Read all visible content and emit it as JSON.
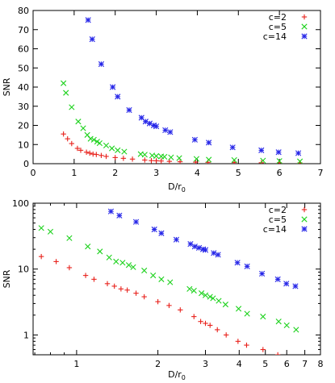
{
  "colors": {
    "c2": "#e8211b",
    "c5": "#1ed21e",
    "c14": "#2727e8",
    "axis": "#000000",
    "background": "#ffffff"
  },
  "chart_data": [
    {
      "type": "scatter",
      "title": "",
      "xlabel": "D/r",
      "xlabel_subscript": "0",
      "ylabel": "SNR",
      "xscale": "linear",
      "yscale": "linear",
      "xlim": [
        0,
        7
      ],
      "ylim": [
        0,
        80
      ],
      "xticks": [
        0,
        1,
        2,
        3,
        4,
        5,
        6,
        7
      ],
      "xtick_labels": [
        "0",
        "1",
        "2",
        "3",
        "4",
        "5",
        "6",
        "7"
      ],
      "yticks": [
        0,
        10,
        20,
        30,
        40,
        50,
        60,
        70,
        80
      ],
      "ytick_labels": [
        "0",
        "10",
        "20",
        "30",
        "40",
        "50",
        "60",
        "70",
        "80"
      ],
      "legend_position": "top-right",
      "series": [
        {
          "name": "c=2",
          "marker": "plus",
          "color": "#e8211b",
          "x": [
            0.74,
            0.84,
            0.94,
            1.08,
            1.16,
            1.3,
            1.38,
            1.46,
            1.54,
            1.66,
            1.78,
            2.0,
            2.2,
            2.42,
            2.72,
            2.88,
            3.0,
            3.12,
            3.32,
            3.58,
            3.96,
            4.26,
            4.9,
            5.56,
            6.0,
            6.5
          ],
          "y": [
            15.5,
            13.0,
            10.5,
            8.0,
            7.0,
            6.0,
            5.5,
            5.0,
            4.8,
            4.3,
            3.8,
            3.2,
            2.8,
            2.4,
            1.9,
            1.6,
            1.5,
            1.4,
            1.2,
            1.0,
            0.8,
            0.7,
            0.6,
            0.5,
            0.45,
            0.4
          ]
        },
        {
          "name": "c=5",
          "marker": "x",
          "color": "#1ed21e",
          "x": [
            0.74,
            0.8,
            0.94,
            1.1,
            1.22,
            1.32,
            1.4,
            1.48,
            1.56,
            1.62,
            1.78,
            1.92,
            2.06,
            2.22,
            2.62,
            2.72,
            2.9,
            3.0,
            3.12,
            3.2,
            3.36,
            3.56,
            3.98,
            4.28,
            4.9,
            5.6,
            6.0,
            6.5
          ],
          "y": [
            42,
            37,
            29.5,
            22,
            18.5,
            15,
            13,
            12.5,
            11.5,
            10.7,
            9.5,
            8.0,
            7.0,
            6.3,
            5.0,
            4.7,
            4.3,
            4.0,
            3.8,
            3.6,
            3.3,
            2.9,
            2.5,
            2.1,
            1.9,
            1.6,
            1.4,
            1.2
          ]
        },
        {
          "name": "c=14",
          "marker": "star",
          "color": "#2727e8",
          "x": [
            1.34,
            1.44,
            1.66,
            1.94,
            2.06,
            2.34,
            2.64,
            2.74,
            2.84,
            2.94,
            3.0,
            3.22,
            3.34,
            3.94,
            4.28,
            4.86,
            5.56,
            5.98,
            6.46
          ],
          "y": [
            75,
            65,
            52,
            40,
            35,
            28,
            24,
            22,
            21,
            20,
            19.5,
            17.5,
            16.5,
            12.5,
            11,
            8.5,
            7,
            6,
            5.5
          ]
        }
      ]
    },
    {
      "type": "scatter",
      "title": "",
      "xlabel": "D/r",
      "xlabel_subscript": "0",
      "ylabel": "SNR",
      "xscale": "log",
      "yscale": "log",
      "xlim": [
        0.69,
        8
      ],
      "ylim": [
        0.5,
        100
      ],
      "xticks": [
        1,
        2,
        3,
        4,
        5,
        6,
        7,
        8
      ],
      "xtick_labels": [
        "1",
        "2",
        "3",
        "4",
        "5",
        "6",
        "7",
        "8"
      ],
      "yticks": [
        1,
        10,
        100
      ],
      "ytick_labels": [
        "1",
        "10",
        "100"
      ],
      "legend_position": "top-right",
      "series": [
        {
          "name": "c=2",
          "marker": "plus",
          "color": "#e8211b",
          "x": [
            0.74,
            0.84,
            0.94,
            1.08,
            1.16,
            1.3,
            1.38,
            1.46,
            1.54,
            1.66,
            1.78,
            2.0,
            2.2,
            2.42,
            2.72,
            2.88,
            3.0,
            3.12,
            3.32,
            3.58,
            3.96,
            4.26,
            4.9,
            5.56,
            6.0,
            6.5
          ],
          "y": [
            15.5,
            13.0,
            10.5,
            8.0,
            7.0,
            6.0,
            5.5,
            5.0,
            4.8,
            4.3,
            3.8,
            3.2,
            2.8,
            2.4,
            1.9,
            1.6,
            1.5,
            1.4,
            1.2,
            1.0,
            0.8,
            0.7,
            0.6,
            0.5,
            0.45,
            0.4
          ]
        },
        {
          "name": "c=5",
          "marker": "x",
          "color": "#1ed21e",
          "x": [
            0.74,
            0.8,
            0.94,
            1.1,
            1.22,
            1.32,
            1.4,
            1.48,
            1.56,
            1.62,
            1.78,
            1.92,
            2.06,
            2.22,
            2.62,
            2.72,
            2.9,
            3.0,
            3.12,
            3.2,
            3.36,
            3.56,
            3.98,
            4.28,
            4.9,
            5.6,
            6.0,
            6.5
          ],
          "y": [
            42,
            37,
            29.5,
            22,
            18.5,
            15,
            13,
            12.5,
            11.5,
            10.7,
            9.5,
            8.0,
            7.0,
            6.3,
            5.0,
            4.7,
            4.3,
            4.0,
            3.8,
            3.6,
            3.3,
            2.9,
            2.5,
            2.1,
            1.9,
            1.6,
            1.4,
            1.2
          ]
        },
        {
          "name": "c=14",
          "marker": "star",
          "color": "#2727e8",
          "x": [
            1.34,
            1.44,
            1.66,
            1.94,
            2.06,
            2.34,
            2.64,
            2.74,
            2.84,
            2.94,
            3.0,
            3.22,
            3.34,
            3.94,
            4.28,
            4.86,
            5.56,
            5.98,
            6.46
          ],
          "y": [
            75,
            65,
            52,
            40,
            35,
            28,
            24,
            22,
            21,
            20,
            19.5,
            17.5,
            16.5,
            12.5,
            11,
            8.5,
            7,
            6,
            5.5
          ]
        }
      ]
    }
  ]
}
